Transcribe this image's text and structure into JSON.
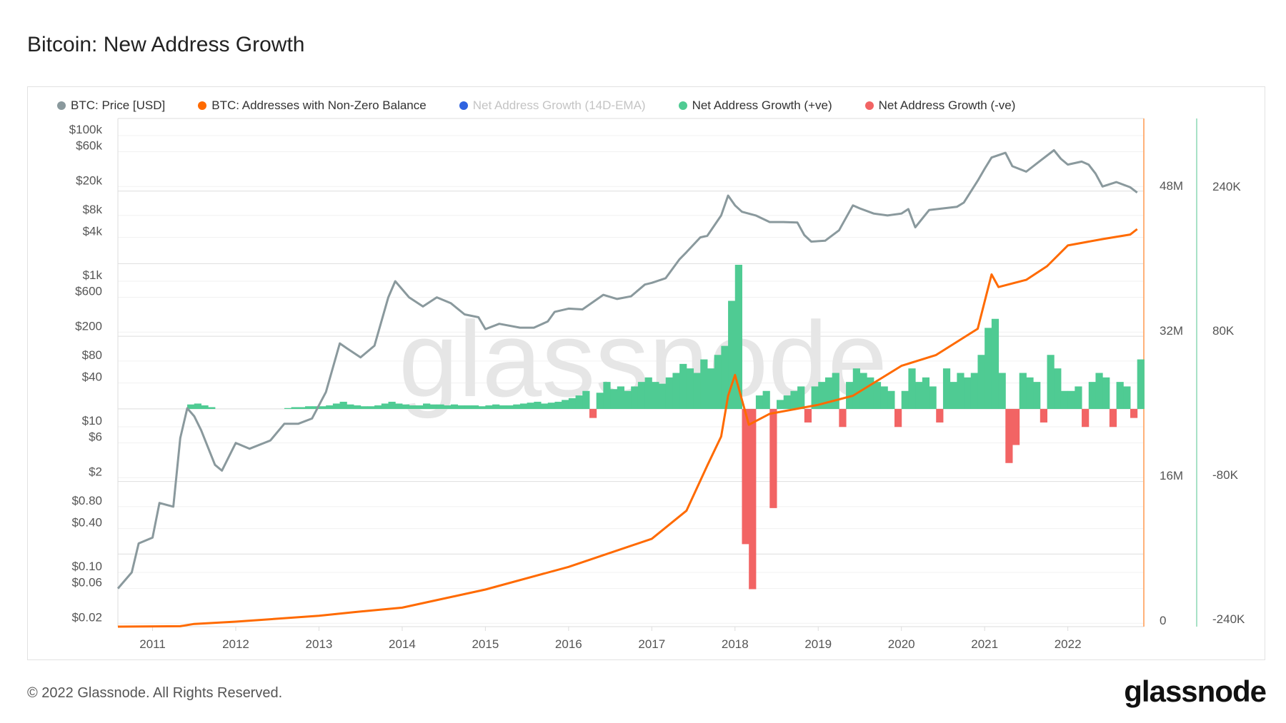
{
  "title": "Bitcoin: New Address Growth",
  "footer": "© 2022 Glassnode. All Rights Reserved.",
  "logo": "glassnode",
  "watermark": "glassnode",
  "legend": [
    {
      "label": "BTC: Price [USD]",
      "color": "#8a999d",
      "muted": false
    },
    {
      "label": "BTC: Addresses with Non-Zero Balance",
      "color": "#ff6a00",
      "muted": false
    },
    {
      "label": "Net Address Growth (14D-EMA)",
      "color": "#2f63e0",
      "muted": true
    },
    {
      "label": "Net Address Growth (+ve)",
      "color": "#4fcb93",
      "muted": false
    },
    {
      "label": "Net Address Growth (-ve)",
      "color": "#f26464",
      "muted": false
    }
  ],
  "chart_data": {
    "type": "line",
    "title": "Bitcoin: New Address Growth",
    "x_range": [
      "2010-08",
      "2022-11"
    ],
    "x_ticks": [
      "2011",
      "2012",
      "2013",
      "2014",
      "2015",
      "2016",
      "2017",
      "2018",
      "2019",
      "2020",
      "2021",
      "2022"
    ],
    "grid": true,
    "legend_position": "top-left",
    "axes": {
      "price": {
        "scale": "log",
        "ticks": [
          {
            "v": 100000,
            "label": "$100k"
          },
          {
            "v": 60000,
            "label": "$60k"
          },
          {
            "v": 20000,
            "label": "$20k"
          },
          {
            "v": 8000,
            "label": "$8k"
          },
          {
            "v": 4000,
            "label": "$4k"
          },
          {
            "v": 1000,
            "label": "$1k"
          },
          {
            "v": 600,
            "label": "$600"
          },
          {
            "v": 200,
            "label": "$200"
          },
          {
            "v": 80,
            "label": "$80"
          },
          {
            "v": 40,
            "label": "$40"
          },
          {
            "v": 10,
            "label": "$10"
          },
          {
            "v": 6,
            "label": "$6"
          },
          {
            "v": 2,
            "label": "$2"
          },
          {
            "v": 0.8,
            "label": "$0.80"
          },
          {
            "v": 0.4,
            "label": "$0.40"
          },
          {
            "v": 0.1,
            "label": "$0.10"
          },
          {
            "v": 0.06,
            "label": "$0.06"
          },
          {
            "v": 0.02,
            "label": "$0.02"
          }
        ]
      },
      "addresses": {
        "scale": "linear",
        "ticks": [
          {
            "v": 48,
            "label": "48M"
          },
          {
            "v": 32,
            "label": "32M"
          },
          {
            "v": 16,
            "label": "16M"
          },
          {
            "v": 0,
            "label": "0"
          }
        ]
      },
      "growth": {
        "scale": "linear",
        "ticks": [
          {
            "v": 240,
            "label": "240K"
          },
          {
            "v": 80,
            "label": "80K"
          },
          {
            "v": -80,
            "label": "-80K"
          },
          {
            "v": -240,
            "label": "-240K"
          }
        ]
      }
    },
    "series": [
      {
        "name": "BTC: Price [USD]",
        "axis": "price",
        "color": "#8a999d",
        "points": [
          [
            "2010-08",
            0.06
          ],
          [
            "2010-10",
            0.1
          ],
          [
            "2010-11",
            0.25
          ],
          [
            "2011-01",
            0.3
          ],
          [
            "2011-02",
            0.9
          ],
          [
            "2011-04",
            0.8
          ],
          [
            "2011-05",
            7
          ],
          [
            "2011-06",
            18
          ],
          [
            "2011-07",
            14
          ],
          [
            "2011-08",
            9
          ],
          [
            "2011-10",
            3
          ],
          [
            "2011-11",
            2.5
          ],
          [
            "2012-01",
            6
          ],
          [
            "2012-03",
            5
          ],
          [
            "2012-06",
            6.5
          ],
          [
            "2012-08",
            11
          ],
          [
            "2012-10",
            11
          ],
          [
            "2012-12",
            13
          ],
          [
            "2013-02",
            30
          ],
          [
            "2013-04",
            140
          ],
          [
            "2013-05",
            120
          ],
          [
            "2013-07",
            90
          ],
          [
            "2013-09",
            130
          ],
          [
            "2013-11",
            600
          ],
          [
            "2013-12",
            1000
          ],
          [
            "2014-02",
            600
          ],
          [
            "2014-04",
            450
          ],
          [
            "2014-06",
            600
          ],
          [
            "2014-08",
            500
          ],
          [
            "2014-10",
            350
          ],
          [
            "2014-12",
            320
          ],
          [
            "2015-01",
            220
          ],
          [
            "2015-03",
            260
          ],
          [
            "2015-06",
            230
          ],
          [
            "2015-08",
            230
          ],
          [
            "2015-10",
            280
          ],
          [
            "2015-11",
            380
          ],
          [
            "2016-01",
            420
          ],
          [
            "2016-03",
            410
          ],
          [
            "2016-06",
            650
          ],
          [
            "2016-08",
            570
          ],
          [
            "2016-10",
            620
          ],
          [
            "2016-12",
            900
          ],
          [
            "2017-01",
            950
          ],
          [
            "2017-03",
            1100
          ],
          [
            "2017-05",
            2000
          ],
          [
            "2017-06",
            2500
          ],
          [
            "2017-08",
            4000
          ],
          [
            "2017-09",
            4200
          ],
          [
            "2017-11",
            8000
          ],
          [
            "2017-12",
            15000
          ],
          [
            "2018-01",
            11000
          ],
          [
            "2018-02",
            9000
          ],
          [
            "2018-04",
            8000
          ],
          [
            "2018-06",
            6500
          ],
          [
            "2018-08",
            6500
          ],
          [
            "2018-10",
            6400
          ],
          [
            "2018-11",
            4300
          ],
          [
            "2018-12",
            3500
          ],
          [
            "2019-02",
            3600
          ],
          [
            "2019-04",
            5000
          ],
          [
            "2019-06",
            11000
          ],
          [
            "2019-07",
            10000
          ],
          [
            "2019-09",
            8500
          ],
          [
            "2019-11",
            8000
          ],
          [
            "2020-01",
            8500
          ],
          [
            "2020-02",
            9800
          ],
          [
            "2020-03",
            5500
          ],
          [
            "2020-05",
            9500
          ],
          [
            "2020-07",
            10000
          ],
          [
            "2020-09",
            10500
          ],
          [
            "2020-10",
            12000
          ],
          [
            "2020-12",
            24000
          ],
          [
            "2021-01",
            35000
          ],
          [
            "2021-02",
            50000
          ],
          [
            "2021-04",
            58000
          ],
          [
            "2021-05",
            38000
          ],
          [
            "2021-07",
            32000
          ],
          [
            "2021-09",
            45000
          ],
          [
            "2021-11",
            63000
          ],
          [
            "2021-12",
            48000
          ],
          [
            "2022-01",
            40000
          ],
          [
            "2022-03",
            44000
          ],
          [
            "2022-04",
            40000
          ],
          [
            "2022-05",
            30000
          ],
          [
            "2022-06",
            20000
          ],
          [
            "2022-08",
            23000
          ],
          [
            "2022-10",
            19500
          ],
          [
            "2022-11",
            16500
          ]
        ]
      },
      {
        "name": "BTC: Addresses with Non-Zero Balance",
        "axis": "addresses",
        "unit": "M",
        "color": "#ff6a00",
        "points": [
          [
            "2010-08",
            0
          ],
          [
            "2011-05",
            0.05
          ],
          [
            "2011-07",
            0.3
          ],
          [
            "2012-01",
            0.55
          ],
          [
            "2013-01",
            1.2
          ],
          [
            "2013-06",
            1.6
          ],
          [
            "2014-01",
            2.1
          ],
          [
            "2015-01",
            4.1
          ],
          [
            "2016-01",
            6.6
          ],
          [
            "2017-01",
            9.7
          ],
          [
            "2017-06",
            12.8
          ],
          [
            "2017-09",
            17.8
          ],
          [
            "2017-11",
            21
          ],
          [
            "2017-12",
            25.5
          ],
          [
            "2018-01",
            27.8
          ],
          [
            "2018-03",
            22.3
          ],
          [
            "2018-06",
            23.5
          ],
          [
            "2019-01",
            24.5
          ],
          [
            "2019-06",
            25.5
          ],
          [
            "2020-01",
            28.8
          ],
          [
            "2020-06",
            30
          ],
          [
            "2020-12",
            32.9
          ],
          [
            "2021-02",
            38.9
          ],
          [
            "2021-03",
            37.5
          ],
          [
            "2021-07",
            38.3
          ],
          [
            "2021-10",
            39.8
          ],
          [
            "2022-01",
            42.1
          ],
          [
            "2022-06",
            42.8
          ],
          [
            "2022-10",
            43.3
          ],
          [
            "2022-11",
            43.9
          ]
        ]
      },
      {
        "name": "Net Address Growth",
        "axis": "growth",
        "unit": "K",
        "positive_color": "#4fcb93",
        "negative_color": "#f26464",
        "start": "2010-08",
        "interval": "month",
        "values": [
          0,
          0,
          0,
          0,
          0,
          0,
          0,
          0,
          0,
          0,
          5,
          6,
          4,
          2,
          0,
          0,
          0,
          0,
          0,
          0,
          0,
          0,
          0,
          0,
          1,
          2,
          2,
          3,
          3,
          3,
          4,
          6,
          8,
          5,
          4,
          3,
          3,
          4,
          6,
          8,
          6,
          5,
          4,
          4,
          6,
          5,
          5,
          4,
          5,
          4,
          4,
          4,
          3,
          4,
          5,
          4,
          4,
          5,
          6,
          7,
          8,
          6,
          7,
          8,
          10,
          12,
          15,
          20,
          -10,
          18,
          30,
          22,
          25,
          20,
          25,
          30,
          35,
          30,
          28,
          35,
          40,
          50,
          45,
          40,
          55,
          45,
          60,
          70,
          120,
          160,
          -150,
          -200,
          15,
          20,
          -110,
          10,
          15,
          20,
          25,
          -15,
          25,
          30,
          35,
          40,
          -20,
          30,
          45,
          40,
          35,
          30,
          25,
          20,
          -20,
          20,
          45,
          30,
          35,
          25,
          -15,
          45,
          30,
          40,
          35,
          40,
          60,
          90,
          100,
          40,
          -60,
          -40,
          40,
          35,
          30,
          -15,
          60,
          45,
          20,
          20,
          25,
          -20,
          30,
          40,
          35,
          -20,
          30,
          25,
          -10,
          55
        ]
      }
    ]
  }
}
